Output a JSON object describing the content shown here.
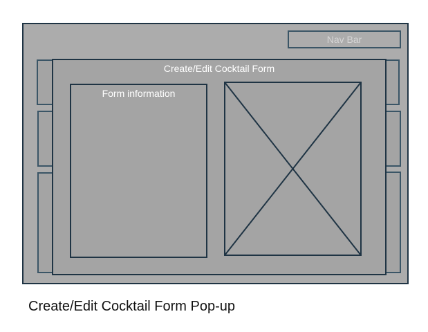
{
  "navbar": {
    "label": "Nav Bar"
  },
  "modal": {
    "title": "Create/Edit Cocktail Form",
    "form_section_label": "Form information"
  },
  "caption": "Create/Edit Cocktail Form Pop-up",
  "colors": {
    "outer_frame_bg": "#acacac",
    "modal_bg": "#a4a4a4",
    "stroke": "#1f3444",
    "label_text": "#ffffff"
  }
}
